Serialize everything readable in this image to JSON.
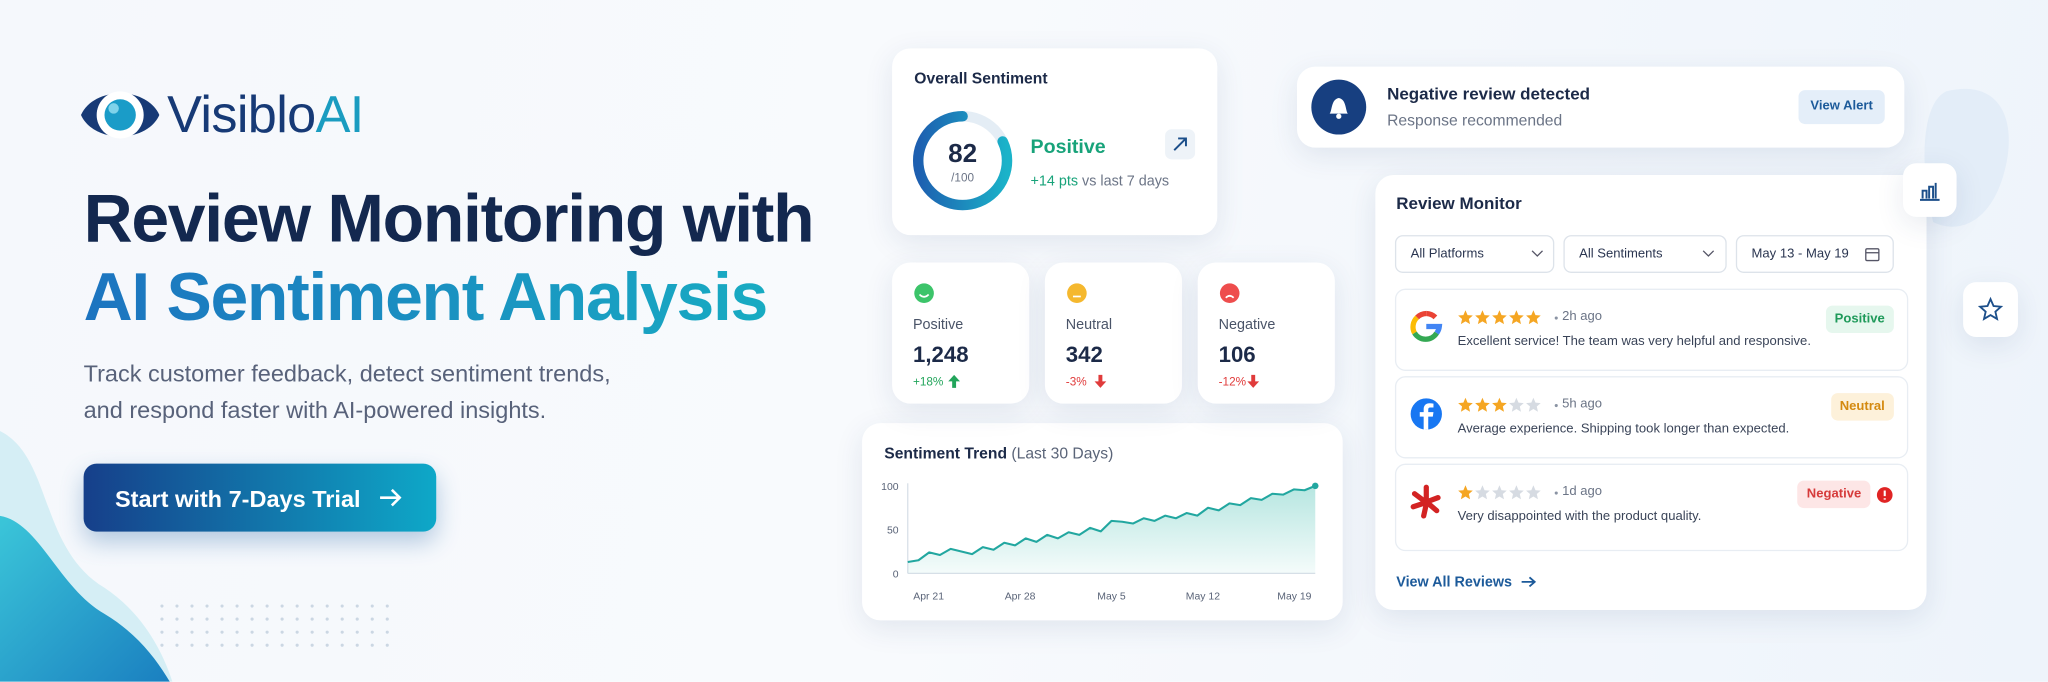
{
  "brand": {
    "name": "Visiblo",
    "accent": "AI"
  },
  "hero": {
    "title_line1": "Review Monitoring with",
    "title_line2": "AI Sentiment Analysis",
    "description_line1": "Track customer feedback, detect sentiment trends,",
    "description_line2": "and respond faster with AI-powered insights.",
    "cta": "Start with 7-Days Trial"
  },
  "overall": {
    "title": "Overall Sentiment",
    "score": 82,
    "score_max": {
      "value": 100,
      "label": "/100"
    },
    "label": "Positive",
    "change": "+14 pts",
    "change_note": "vs last 7 days"
  },
  "stats": [
    {
      "label": "Positive",
      "value": "1,248",
      "change": "+18%"
    },
    {
      "label": "Neutral",
      "value": "342",
      "change": "-3%"
    },
    {
      "label": "Negative",
      "value": "106",
      "change": "-12%"
    }
  ],
  "trend": {
    "title": "Sentiment Trend",
    "subtitle": "(Last 30 Days)",
    "ylim": [
      0,
      100
    ],
    "yticks": [
      0,
      50,
      100
    ],
    "categories": [
      "Apr 21",
      "Apr 28",
      "May 5",
      "May 12",
      "May 19"
    ],
    "values": [
      13,
      15,
      24,
      21,
      28,
      25,
      22,
      30,
      27,
      35,
      32,
      40,
      36,
      44,
      40,
      47,
      44,
      52,
      48,
      60,
      59,
      57,
      63,
      60,
      66,
      63,
      69,
      66,
      75,
      72,
      80,
      78,
      86,
      84,
      91,
      90,
      96,
      95,
      100
    ]
  },
  "alert": {
    "title": "Negative review detected",
    "subtitle": "Response recommended",
    "action": "View Alert"
  },
  "monitor": {
    "title": "Review Monitor",
    "filters": [
      "All Platforms",
      "All Sentiments",
      "May 13 - May 19"
    ],
    "reviews": [
      {
        "rating": 5,
        "time": "2h ago",
        "text": "Excellent service! The team was very helpful and responsive.",
        "badge": "Positive"
      },
      {
        "rating": 3,
        "time": "5h ago",
        "text": "Average experience. Shipping took longer than expected.",
        "badge": "Neutral"
      },
      {
        "rating": 1,
        "time": "1d ago",
        "text": "Very disappointed with the product quality.",
        "badge": "Negative"
      }
    ],
    "link": "View All Reviews"
  }
}
